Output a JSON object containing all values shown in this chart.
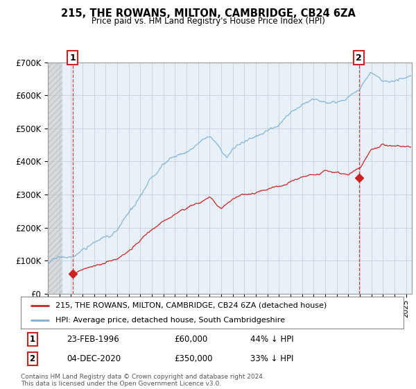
{
  "title": "215, THE ROWANS, MILTON, CAMBRIDGE, CB24 6ZA",
  "subtitle": "Price paid vs. HM Land Registry's House Price Index (HPI)",
  "ylim": [
    0,
    700000
  ],
  "yticks": [
    0,
    100000,
    200000,
    300000,
    400000,
    500000,
    600000,
    700000
  ],
  "ytick_labels": [
    "£0",
    "£100K",
    "£200K",
    "£300K",
    "£400K",
    "£500K",
    "£600K",
    "£700K"
  ],
  "xlim_start": 1994.0,
  "xlim_end": 2025.5,
  "background_color": "#ffffff",
  "plot_bg_color": "#e8f0f8",
  "grid_color": "#c8d4e0",
  "point1_x": 1996.14,
  "point1_y": 60000,
  "point2_x": 2020.92,
  "point2_y": 350000,
  "legend_entries": [
    "215, THE ROWANS, MILTON, CAMBRIDGE, CB24 6ZA (detached house)",
    "HPI: Average price, detached house, South Cambridgeshire"
  ],
  "annotation1": [
    "1",
    "23-FEB-1996",
    "£60,000",
    "44% ↓ HPI"
  ],
  "annotation2": [
    "2",
    "04-DEC-2020",
    "£350,000",
    "33% ↓ HPI"
  ],
  "footer": "Contains HM Land Registry data © Crown copyright and database right 2024.\nThis data is licensed under the Open Government Licence v3.0.",
  "red_line_color": "#cc2222",
  "blue_line_color": "#7aafd4",
  "hatch_end_year": 1995.25
}
